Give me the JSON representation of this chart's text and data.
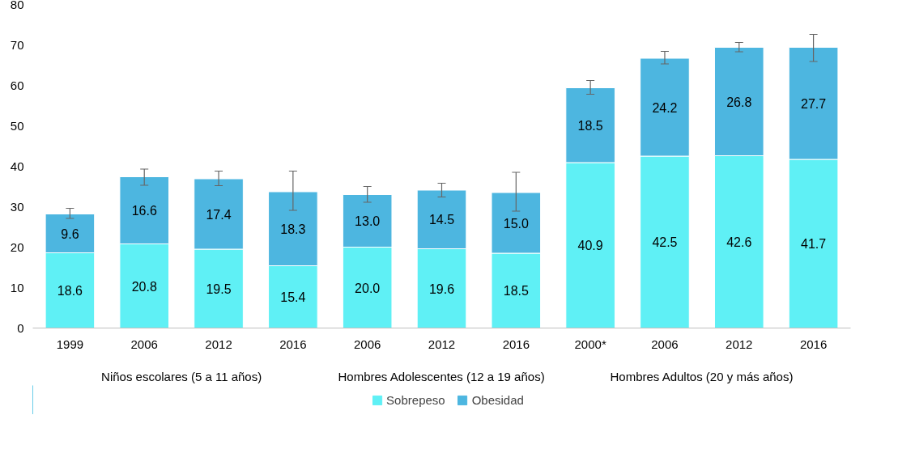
{
  "chart_data": {
    "type": "bar",
    "stacked": true,
    "categories": [
      "1999",
      "2006",
      "2012",
      "2016",
      "2006",
      "2012",
      "2016",
      "2000*",
      "2006",
      "2012",
      "2016"
    ],
    "series": [
      {
        "name": "Sobrepeso",
        "color": "#5ff0f5",
        "values": [
          18.6,
          20.8,
          19.5,
          15.4,
          20.0,
          19.6,
          18.5,
          40.9,
          42.5,
          42.6,
          41.7
        ],
        "value_labels": [
          "18.6",
          "20.8",
          "19.5",
          "15.4",
          "20.0",
          "19.6",
          "18.5",
          "40.9",
          "42.5",
          "42.6",
          "41.7"
        ]
      },
      {
        "name": "Obesidad",
        "color": "#4db6e0",
        "values": [
          9.6,
          16.6,
          17.4,
          18.3,
          13.0,
          14.5,
          15.0,
          18.5,
          24.2,
          26.8,
          27.7
        ],
        "value_labels": [
          "9.6",
          "16.6",
          "17.4",
          "18.3",
          "13.0",
          "14.5",
          "15.0",
          "18.5",
          "24.2",
          "26.8",
          "27.7"
        ],
        "errors": [
          [
            27.1,
            29.6
          ],
          [
            35.3,
            39.3
          ],
          [
            35.2,
            38.8
          ],
          [
            29.1,
            38.8
          ],
          [
            31.1,
            35.0
          ],
          [
            32.4,
            35.8
          ],
          [
            28.9,
            38.5
          ],
          [
            57.8,
            61.2
          ],
          [
            65.3,
            68.4
          ],
          [
            68.3,
            70.6
          ],
          [
            65.9,
            72.6
          ]
        ]
      }
    ],
    "annotations": [
      "Niños escolares (5 a 11 años)",
      "Hombres Adolescentes (12 a 19 años)",
      "Hombres Adultos (20 y más años)"
    ],
    "ylim": [
      0,
      80
    ],
    "yticks": [
      0,
      10,
      20,
      30,
      40,
      50,
      60,
      70,
      80
    ],
    "grid": false,
    "legend": "bottom"
  }
}
